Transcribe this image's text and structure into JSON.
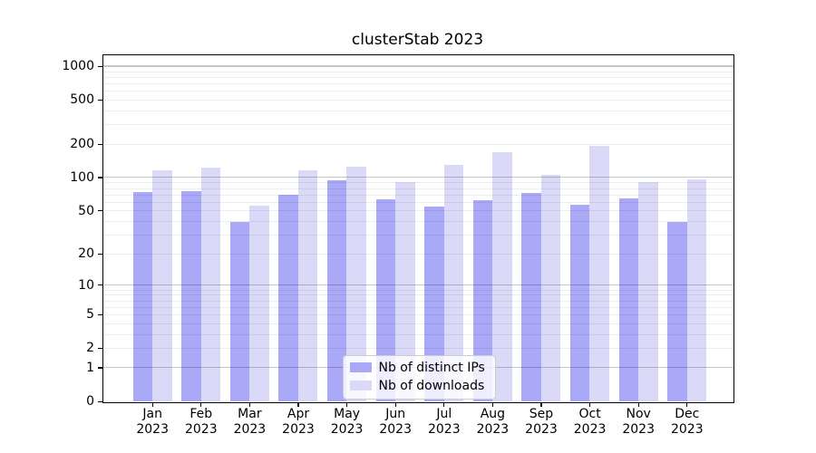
{
  "title": "clusterStab 2023",
  "chart_data": {
    "type": "bar",
    "title": "clusterStab 2023",
    "categories": [
      "Jan 2023",
      "Feb 2023",
      "Mar 2023",
      "Apr 2023",
      "May 2023",
      "Jun 2023",
      "Jul 2023",
      "Aug 2023",
      "Sep 2023",
      "Oct 2023",
      "Nov 2023",
      "Dec 2023"
    ],
    "series": [
      {
        "name": "Nb of distinct IPs",
        "color": "#a9a9f8",
        "values": [
          74,
          75,
          39,
          70,
          95,
          63,
          54,
          62,
          73,
          57,
          64,
          39
        ]
      },
      {
        "name": "Nb of downloads",
        "color": "#dadaf8",
        "values": [
          117,
          122,
          56,
          115,
          126,
          91,
          130,
          169,
          106,
          193,
          91,
          96
        ]
      }
    ],
    "xlabel": "",
    "ylabel": "",
    "y_axis": {
      "scale": "symlog",
      "tick_labels": [
        "1000",
        "500",
        "200",
        "100",
        "50",
        "20",
        "10",
        "5",
        "2",
        "1",
        "0"
      ],
      "tick_values": [
        1000,
        500,
        200,
        100,
        50,
        20,
        10,
        5,
        2,
        1,
        0
      ],
      "max_value": 1264,
      "grid_major_values": [
        1,
        10,
        100,
        1000
      ]
    },
    "grid": "on",
    "legend_position": "lower center"
  },
  "colors": {
    "background": "#ffffff",
    "axis": "#000000",
    "grid_major": "rgba(0,0,0,0.22)",
    "grid_minor": "rgba(0,0,0,0.07)",
    "text": "#000000"
  }
}
